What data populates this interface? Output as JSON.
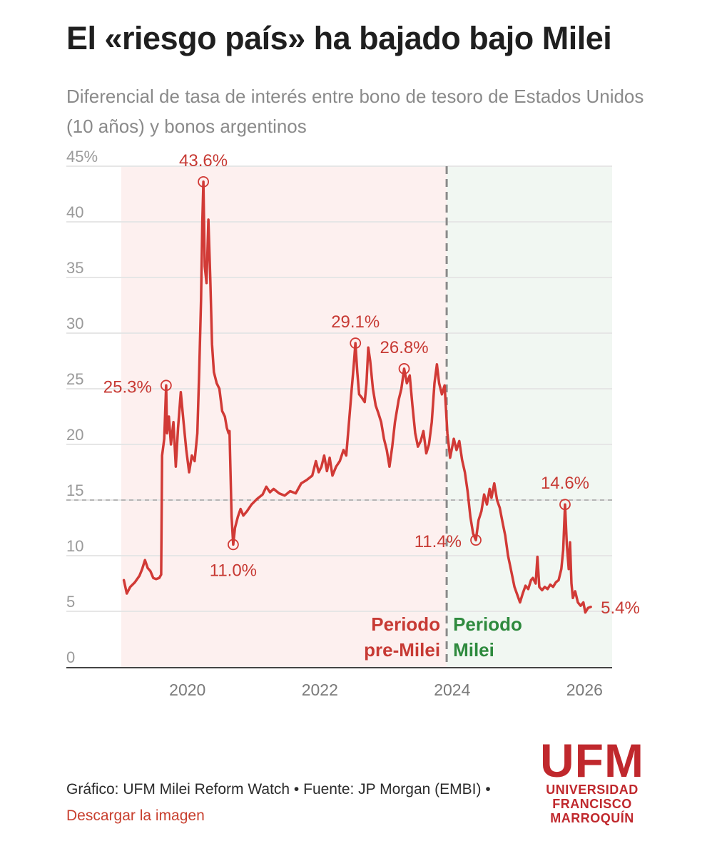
{
  "title": "El «riesgo país» ha bajado bajo Milei",
  "subtitle": "Diferencial de tasa de interés entre bono de tesoro de Estados Unidos (10 años) y bonos argentinos",
  "colors": {
    "line": "#d13a36",
    "pre_bg": "#fdf0ef",
    "milei_bg": "#f1f7f2",
    "pre_label": "#c73a34",
    "milei_label": "#2e8a3e",
    "axis": "#444444",
    "grid": "#e6e6e6",
    "ref_line": "#b5b5b5",
    "divider": "#8a8a8a",
    "tick_text": "#9a9a9a"
  },
  "chart_data": {
    "type": "line",
    "x_axis": {
      "type": "time",
      "ticks": [
        "2020",
        "2022",
        "2024",
        "2026"
      ],
      "range": [
        "2019-01",
        "2026-06"
      ]
    },
    "y_axis": {
      "ticks": [
        "0",
        "5",
        "10",
        "15",
        "20",
        "25",
        "30",
        "35",
        "40",
        "45%"
      ],
      "range": [
        0,
        45
      ]
    },
    "grid": true,
    "reference_line": 15,
    "divider_date": "2023-12",
    "periods": [
      {
        "label_line1": "Periodo",
        "label_line2": "pre-Milei"
      },
      {
        "label_line1": "Periodo",
        "label_line2": "Milei"
      }
    ],
    "series": [
      {
        "points": [
          [
            "2019-01-15",
            7.8
          ],
          [
            "2019-02-01",
            6.6
          ],
          [
            "2019-02-20",
            7.2
          ],
          [
            "2019-03-15",
            7.6
          ],
          [
            "2019-04-10",
            8.2
          ],
          [
            "2019-04-25",
            8.8
          ],
          [
            "2019-05-10",
            9.6
          ],
          [
            "2019-05-25",
            8.9
          ],
          [
            "2019-06-10",
            8.6
          ],
          [
            "2019-06-25",
            8.0
          ],
          [
            "2019-07-10",
            7.9
          ],
          [
            "2019-07-28",
            8.0
          ],
          [
            "2019-08-08",
            8.3
          ],
          [
            "2019-08-13",
            19.0
          ],
          [
            "2019-08-25",
            20.5
          ],
          [
            "2019-09-05",
            25.3
          ],
          [
            "2019-09-10",
            21.0
          ],
          [
            "2019-09-20",
            22.5
          ],
          [
            "2019-10-01",
            20.0
          ],
          [
            "2019-10-15",
            22.0
          ],
          [
            "2019-10-28",
            18.0
          ],
          [
            "2019-11-10",
            21.5
          ],
          [
            "2019-11-25",
            24.7
          ],
          [
            "2019-12-10",
            22.0
          ],
          [
            "2019-12-25",
            19.5
          ],
          [
            "2020-01-10",
            17.5
          ],
          [
            "2020-01-25",
            19.0
          ],
          [
            "2020-02-10",
            18.5
          ],
          [
            "2020-02-25",
            21.0
          ],
          [
            "2020-03-05",
            26.5
          ],
          [
            "2020-03-15",
            33.0
          ],
          [
            "2020-03-22",
            40.0
          ],
          [
            "2020-03-28",
            43.6
          ],
          [
            "2020-04-05",
            36.0
          ],
          [
            "2020-04-15",
            34.5
          ],
          [
            "2020-04-25",
            40.2
          ],
          [
            "2020-05-05",
            35.0
          ],
          [
            "2020-05-15",
            29.0
          ],
          [
            "2020-05-25",
            26.5
          ],
          [
            "2020-06-10",
            25.5
          ],
          [
            "2020-06-25",
            25.0
          ],
          [
            "2020-07-10",
            23.0
          ],
          [
            "2020-07-25",
            22.5
          ],
          [
            "2020-08-05",
            21.5
          ],
          [
            "2020-08-15",
            21.0
          ],
          [
            "2020-08-20",
            21.2
          ],
          [
            "2020-09-01",
            13.5
          ],
          [
            "2020-09-10",
            11.0
          ],
          [
            "2020-09-20",
            12.5
          ],
          [
            "2020-10-05",
            13.5
          ],
          [
            "2020-10-20",
            14.2
          ],
          [
            "2020-11-05",
            13.6
          ],
          [
            "2020-11-25",
            14.0
          ],
          [
            "2020-12-20",
            14.6
          ],
          [
            "2021-01-20",
            15.1
          ],
          [
            "2021-02-20",
            15.5
          ],
          [
            "2021-03-10",
            16.2
          ],
          [
            "2021-03-30",
            15.7
          ],
          [
            "2021-04-20",
            16.0
          ],
          [
            "2021-05-20",
            15.6
          ],
          [
            "2021-06-20",
            15.4
          ],
          [
            "2021-07-20",
            15.8
          ],
          [
            "2021-08-20",
            15.6
          ],
          [
            "2021-09-20",
            16.5
          ],
          [
            "2021-10-20",
            16.8
          ],
          [
            "2021-11-20",
            17.2
          ],
          [
            "2021-12-10",
            18.5
          ],
          [
            "2021-12-25",
            17.5
          ],
          [
            "2022-01-10",
            18.0
          ],
          [
            "2022-01-25",
            19.0
          ],
          [
            "2022-02-10",
            17.6
          ],
          [
            "2022-02-25",
            18.8
          ],
          [
            "2022-03-10",
            17.2
          ],
          [
            "2022-03-30",
            18.0
          ],
          [
            "2022-04-20",
            18.5
          ],
          [
            "2022-05-10",
            19.5
          ],
          [
            "2022-05-25",
            19.0
          ],
          [
            "2022-06-10",
            22.0
          ],
          [
            "2022-06-25",
            25.0
          ],
          [
            "2022-07-05",
            27.0
          ],
          [
            "2022-07-15",
            29.1
          ],
          [
            "2022-07-25",
            26.5
          ],
          [
            "2022-08-05",
            24.5
          ],
          [
            "2022-08-20",
            24.2
          ],
          [
            "2022-09-05",
            23.8
          ],
          [
            "2022-09-15",
            25.5
          ],
          [
            "2022-09-25",
            28.7
          ],
          [
            "2022-10-05",
            27.5
          ],
          [
            "2022-10-20",
            25.0
          ],
          [
            "2022-11-05",
            23.5
          ],
          [
            "2022-11-20",
            22.8
          ],
          [
            "2022-12-05",
            22.0
          ],
          [
            "2022-12-20",
            20.5
          ],
          [
            "2023-01-05",
            19.5
          ],
          [
            "2023-01-20",
            18.0
          ],
          [
            "2023-02-05",
            19.8
          ],
          [
            "2023-02-20",
            22.0
          ],
          [
            "2023-03-10",
            24.0
          ],
          [
            "2023-03-25",
            25.0
          ],
          [
            "2023-04-10",
            26.8
          ],
          [
            "2023-04-25",
            25.5
          ],
          [
            "2023-05-10",
            26.2
          ],
          [
            "2023-05-25",
            23.5
          ],
          [
            "2023-06-10",
            21.0
          ],
          [
            "2023-06-25",
            19.8
          ],
          [
            "2023-07-10",
            20.3
          ],
          [
            "2023-07-25",
            21.2
          ],
          [
            "2023-08-10",
            19.2
          ],
          [
            "2023-08-25",
            20.0
          ],
          [
            "2023-09-10",
            22.0
          ],
          [
            "2023-09-25",
            25.5
          ],
          [
            "2023-10-08",
            27.2
          ],
          [
            "2023-10-20",
            25.5
          ],
          [
            "2023-11-05",
            24.5
          ],
          [
            "2023-11-20",
            25.3
          ],
          [
            "2023-12-05",
            21.0
          ],
          [
            "2023-12-20",
            18.8
          ],
          [
            "2024-01-10",
            20.5
          ],
          [
            "2024-01-25",
            19.5
          ],
          [
            "2024-02-10",
            20.3
          ],
          [
            "2024-02-25",
            18.6
          ],
          [
            "2024-03-10",
            17.5
          ],
          [
            "2024-03-25",
            15.8
          ],
          [
            "2024-04-10",
            13.5
          ],
          [
            "2024-04-25",
            12.0
          ],
          [
            "2024-05-10",
            11.4
          ],
          [
            "2024-05-25",
            13.2
          ],
          [
            "2024-06-10",
            14.0
          ],
          [
            "2024-06-25",
            15.5
          ],
          [
            "2024-07-10",
            14.6
          ],
          [
            "2024-07-25",
            16.0
          ],
          [
            "2024-08-05",
            15.2
          ],
          [
            "2024-08-20",
            16.5
          ],
          [
            "2024-09-05",
            15.0
          ],
          [
            "2024-09-20",
            14.3
          ],
          [
            "2024-10-05",
            13.0
          ],
          [
            "2024-10-20",
            11.8
          ],
          [
            "2024-11-05",
            10.0
          ],
          [
            "2024-11-20",
            8.8
          ],
          [
            "2024-12-10",
            7.2
          ],
          [
            "2024-12-25",
            6.5
          ],
          [
            "2025-01-10",
            5.8
          ],
          [
            "2025-01-25",
            6.6
          ],
          [
            "2025-02-10",
            7.3
          ],
          [
            "2025-02-25",
            7.0
          ],
          [
            "2025-03-10",
            7.8
          ],
          [
            "2025-03-20",
            8.0
          ],
          [
            "2025-04-05",
            7.5
          ],
          [
            "2025-04-15",
            9.9
          ],
          [
            "2025-04-25",
            7.2
          ],
          [
            "2025-05-10",
            6.9
          ],
          [
            "2025-05-25",
            7.2
          ],
          [
            "2025-06-10",
            7.0
          ],
          [
            "2025-06-25",
            7.4
          ],
          [
            "2025-07-10",
            7.2
          ],
          [
            "2025-07-25",
            7.6
          ],
          [
            "2025-08-10",
            7.8
          ],
          [
            "2025-08-25",
            8.8
          ],
          [
            "2025-09-05",
            10.5
          ],
          [
            "2025-09-15",
            14.6
          ],
          [
            "2025-09-25",
            11.0
          ],
          [
            "2025-10-05",
            8.8
          ],
          [
            "2025-10-12",
            11.2
          ],
          [
            "2025-10-20",
            7.5
          ],
          [
            "2025-10-28",
            6.2
          ],
          [
            "2025-11-10",
            6.8
          ],
          [
            "2025-11-25",
            5.8
          ],
          [
            "2025-12-10",
            5.5
          ],
          [
            "2025-12-25",
            5.8
          ],
          [
            "2026-01-05",
            4.9
          ],
          [
            "2026-01-20",
            5.3
          ],
          [
            "2026-02-05",
            5.4
          ]
        ]
      }
    ],
    "annotations": [
      {
        "date": "2019-09-05",
        "value": 25.3,
        "text": "25.3%",
        "pos": "left"
      },
      {
        "date": "2020-03-28",
        "value": 43.6,
        "text": "43.6%",
        "pos": "above"
      },
      {
        "date": "2020-09-10",
        "value": 11.0,
        "text": "11.0%",
        "pos": "below"
      },
      {
        "date": "2022-07-15",
        "value": 29.1,
        "text": "29.1%",
        "pos": "above"
      },
      {
        "date": "2023-04-10",
        "value": 26.8,
        "text": "26.8%",
        "pos": "above"
      },
      {
        "date": "2024-05-10",
        "value": 11.4,
        "text": "11.4%",
        "pos": "left"
      },
      {
        "date": "2025-09-15",
        "value": 14.6,
        "text": "14.6%",
        "pos": "above"
      },
      {
        "date": "2026-02-05",
        "value": 5.4,
        "text": "5.4%",
        "pos": "right",
        "no_circle": true
      }
    ]
  },
  "footer": {
    "text": "Gráfico: UFM Milei Reform Watch • Fuente: JP Morgan (EMBI) • ",
    "link": "Descargar la imagen"
  },
  "logo": {
    "big": "UFM",
    "line1": "UNIVERSIDAD",
    "line2": "FRANCISCO",
    "line3": "MARROQUÍN"
  }
}
